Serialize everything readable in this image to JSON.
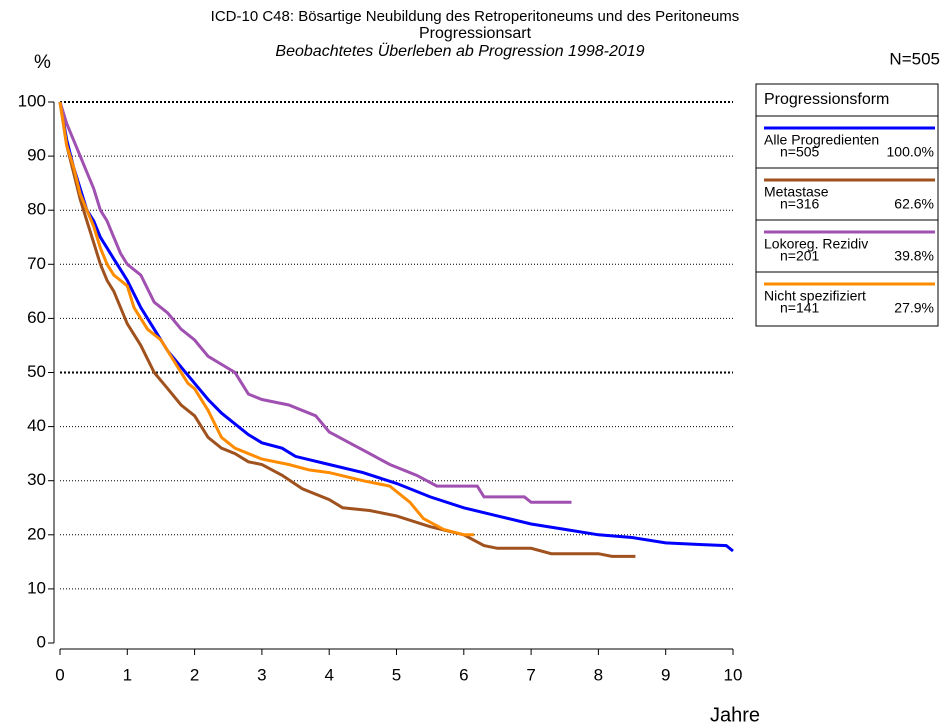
{
  "chart_data": {
    "type": "line",
    "title": "ICD-10 C48: Bösartige Neubildung des Retroperitoneums und des Peritoneums",
    "subtitle": "Progressionsart",
    "caption": "Beobachtetes Überleben ab Progression 1998-2019",
    "y_label": "%",
    "x_label": "Jahre",
    "total_label": "N=505",
    "legend_title": "Progressionsform",
    "legend": "right",
    "xlim": [
      0,
      10
    ],
    "xticks": [
      0,
      1,
      2,
      3,
      4,
      5,
      6,
      7,
      8,
      9,
      10
    ],
    "ylim": [
      0,
      100
    ],
    "yticks": [
      0,
      10,
      20,
      30,
      40,
      50,
      60,
      70,
      80,
      90,
      100
    ],
    "grid": true,
    "grid_emphasis": [
      50,
      100
    ],
    "series": [
      {
        "name": "Alle Progredienten",
        "count_label": "n=505",
        "percent_label": "100.0%",
        "color": "#0000ff",
        "x": [
          0,
          0.1,
          0.2,
          0.3,
          0.4,
          0.5,
          0.6,
          0.7,
          0.8,
          0.9,
          1.0,
          1.2,
          1.4,
          1.6,
          1.8,
          2.0,
          2.2,
          2.4,
          2.6,
          2.8,
          3.0,
          3.3,
          3.5,
          4.0,
          4.5,
          5.0,
          5.5,
          6.0,
          6.5,
          7.0,
          7.5,
          8.0,
          8.5,
          9.0,
          9.5,
          9.9,
          10.0
        ],
        "values": [
          100,
          93,
          88,
          84,
          80,
          78,
          75,
          73,
          71,
          69,
          67,
          62,
          58,
          54,
          51,
          48,
          45,
          42.5,
          40.5,
          38.5,
          37,
          36,
          34.5,
          33,
          31.5,
          29.5,
          27,
          25,
          23.5,
          22,
          21,
          20,
          19.5,
          18.5,
          18.2,
          18,
          17
        ]
      },
      {
        "name": "Metastase",
        "count_label": "n=316",
        "percent_label": "62.6%",
        "color": "#a0521e",
        "x": [
          0,
          0.1,
          0.2,
          0.3,
          0.4,
          0.5,
          0.6,
          0.7,
          0.8,
          1.0,
          1.2,
          1.4,
          1.6,
          1.8,
          2.0,
          2.2,
          2.4,
          2.6,
          2.8,
          3.0,
          3.3,
          3.6,
          4.0,
          4.2,
          4.6,
          5.0,
          5.5,
          6.0,
          6.3,
          6.5,
          7.0,
          7.3,
          8.0,
          8.2,
          8.55
        ],
        "values": [
          100,
          92,
          87,
          82,
          78,
          74,
          70,
          67,
          65,
          59,
          55,
          50,
          47,
          44,
          42,
          38,
          36,
          35,
          33.5,
          33,
          31,
          28.5,
          26.5,
          25,
          24.5,
          23.5,
          21.5,
          20,
          18,
          17.5,
          17.5,
          16.5,
          16.5,
          16,
          16
        ]
      },
      {
        "name": "Lokoreg. Rezidiv",
        "count_label": "n=201",
        "percent_label": "39.8%",
        "color": "#a050b0",
        "x": [
          0,
          0.1,
          0.2,
          0.3,
          0.4,
          0.5,
          0.6,
          0.7,
          0.8,
          0.9,
          1.0,
          1.2,
          1.4,
          1.6,
          1.8,
          2.0,
          2.2,
          2.4,
          2.6,
          2.8,
          3.0,
          3.4,
          3.8,
          4.0,
          4.3,
          4.6,
          4.9,
          5.3,
          5.6,
          6.2,
          6.3,
          6.9,
          7.0,
          7.6
        ],
        "values": [
          100,
          96,
          93,
          90,
          87,
          84,
          80,
          78,
          75,
          72,
          70,
          68,
          63,
          61,
          58,
          56,
          53,
          51.5,
          50,
          46,
          45,
          44,
          42,
          39,
          37,
          35,
          33,
          31,
          29,
          29,
          27,
          27,
          26,
          26
        ]
      },
      {
        "name": "Nicht spezifiziert",
        "count_label": "n=141",
        "percent_label": "27.9%",
        "color": "#ff8c00",
        "x": [
          0,
          0.1,
          0.2,
          0.3,
          0.4,
          0.5,
          0.6,
          0.7,
          0.8,
          0.9,
          1.0,
          1.1,
          1.3,
          1.5,
          1.7,
          1.9,
          2.0,
          2.2,
          2.4,
          2.6,
          3.0,
          3.4,
          3.7,
          4.0,
          4.5,
          4.9,
          5.2,
          5.4,
          5.7,
          6.0,
          6.15
        ],
        "values": [
          100,
          92,
          88,
          83,
          80,
          77,
          73,
          70,
          68,
          67,
          66,
          62,
          58,
          56,
          52,
          48,
          47,
          43,
          38,
          36,
          34,
          33,
          32,
          31.5,
          30,
          29,
          26,
          23,
          21,
          20,
          20
        ]
      }
    ]
  }
}
